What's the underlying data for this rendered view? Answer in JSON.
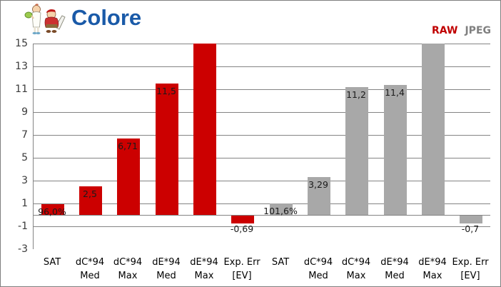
{
  "header": {
    "title": "Colore"
  },
  "legend": {
    "items": [
      {
        "label": "RAW",
        "color": "#C00000"
      },
      {
        "label": "JPEG",
        "color": "#808080"
      }
    ],
    "position": "top-right"
  },
  "chart_data": {
    "type": "bar",
    "title": "Colore",
    "categories": [
      "SAT",
      "dC*94 Med",
      "dC*94 Max",
      "dE*94 Med",
      "dE*94 Max",
      "Exp. Err [EV]"
    ],
    "category_lines": [
      [
        "SAT",
        ""
      ],
      [
        "dC*94",
        "Med"
      ],
      [
        "dC*94",
        "Max"
      ],
      [
        "dE*94",
        "Med"
      ],
      [
        "dE*94",
        "Max"
      ],
      [
        "Exp. Err",
        "[EV]"
      ]
    ],
    "series": [
      {
        "name": "RAW",
        "color": "#CC0000",
        "values": [
          0.96,
          2.5,
          6.71,
          11.5,
          15,
          -0.69
        ],
        "value_labels": [
          "96,0%",
          "2,5",
          "6,71",
          "11,5",
          "",
          "-0,69"
        ],
        "clipped_at_top": [
          false,
          false,
          false,
          false,
          true,
          false
        ]
      },
      {
        "name": "JPEG",
        "color": "#A8A8A8",
        "values": [
          1.016,
          3.29,
          11.2,
          11.4,
          15,
          -0.7
        ],
        "value_labels": [
          "101,6%",
          "3,29",
          "11,2",
          "11,4",
          "",
          "-0,7"
        ],
        "clipped_at_top": [
          false,
          false,
          false,
          false,
          true,
          false
        ]
      }
    ],
    "ylim": [
      -3,
      15
    ],
    "yticks": [
      15,
      13,
      11,
      9,
      7,
      5,
      3,
      1,
      -1,
      -3
    ],
    "grid": true,
    "zero_axis_line": true,
    "gridline_color": "#848484",
    "xlabel": "",
    "ylabel": ""
  }
}
